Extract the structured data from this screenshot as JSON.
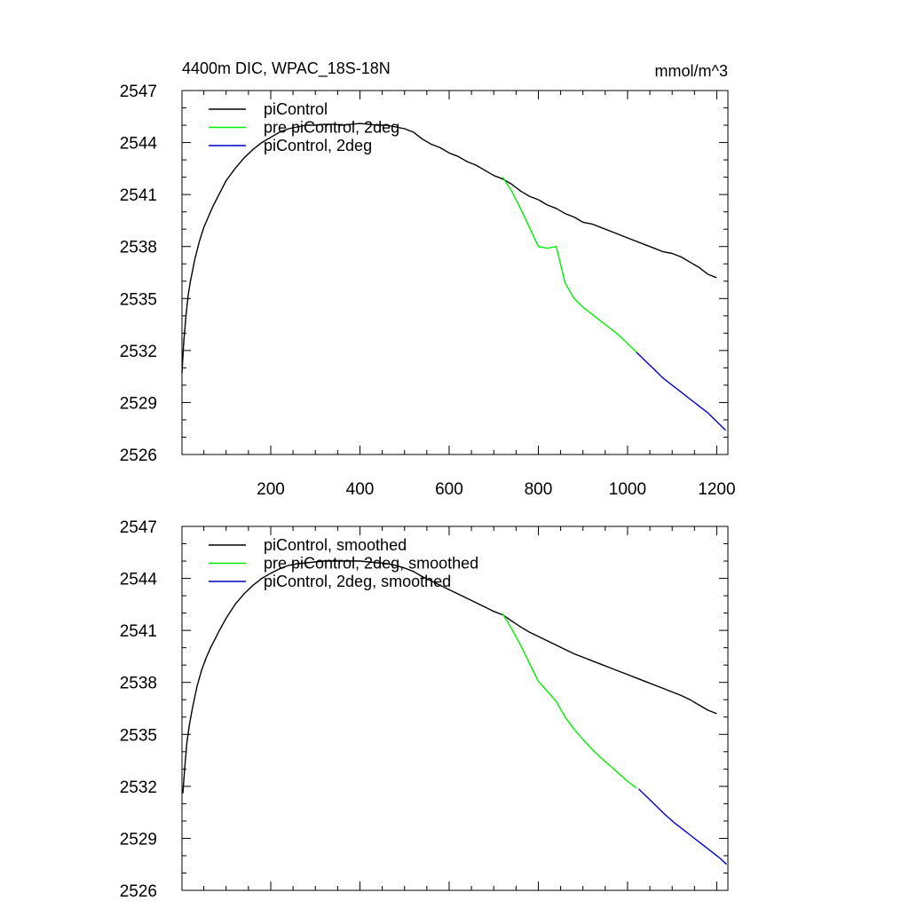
{
  "chart_data": [
    {
      "type": "line",
      "title_left": "4400m DIC, WPAC_18S-18N",
      "title_right": "mmol/m^3",
      "xlim": [
        1,
        1225
      ],
      "ylim": [
        2526,
        2547
      ],
      "yticks": [
        2526,
        2529,
        2532,
        2535,
        2538,
        2541,
        2544,
        2547
      ],
      "xticks": [
        200,
        400,
        600,
        800,
        1000,
        1200
      ],
      "show_x_tick_labels": true,
      "legend_position": "top-left",
      "series": [
        {
          "name": "piControl",
          "color": "#000000",
          "x": [
            1,
            5,
            10,
            15,
            20,
            30,
            40,
            50,
            60,
            70,
            80,
            90,
            100,
            120,
            140,
            160,
            180,
            200,
            220,
            240,
            260,
            280,
            300,
            320,
            340,
            360,
            380,
            400,
            420,
            440,
            460,
            480,
            500,
            520,
            540,
            560,
            580,
            600,
            620,
            640,
            660,
            680,
            700,
            720,
            740,
            760,
            780,
            800,
            820,
            840,
            860,
            880,
            900,
            920,
            940,
            960,
            980,
            1000,
            1020,
            1040,
            1060,
            1080,
            1100,
            1120,
            1140,
            1160,
            1180,
            1200
          ],
          "y": [
            2530.7,
            2532.5,
            2534.0,
            2535.2,
            2536.0,
            2537.3,
            2538.3,
            2539.1,
            2539.7,
            2540.3,
            2540.8,
            2541.3,
            2541.8,
            2542.5,
            2543.1,
            2543.6,
            2544.0,
            2544.3,
            2544.6,
            2544.8,
            2544.9,
            2545.0,
            2545.0,
            2545.05,
            2545.05,
            2545.0,
            2545.05,
            2545.1,
            2545.05,
            2545.0,
            2545.0,
            2544.9,
            2544.8,
            2544.6,
            2544.2,
            2543.9,
            2543.7,
            2543.4,
            2543.2,
            2542.9,
            2542.7,
            2542.4,
            2542.1,
            2541.9,
            2541.6,
            2541.2,
            2540.9,
            2540.7,
            2540.4,
            2540.2,
            2539.9,
            2539.7,
            2539.4,
            2539.3,
            2539.1,
            2538.9,
            2538.7,
            2538.5,
            2538.3,
            2538.1,
            2537.9,
            2537.7,
            2537.6,
            2537.4,
            2537.1,
            2536.8,
            2536.4,
            2536.2
          ]
        },
        {
          "name": "pre piControl, 2deg",
          "color": "#00ee00",
          "x": [
            720,
            740,
            760,
            780,
            800,
            820,
            840,
            860,
            880,
            900,
            920,
            940,
            960,
            980,
            1000,
            1020
          ],
          "y": [
            2542.0,
            2541.2,
            2540.2,
            2539.1,
            2538.0,
            2537.9,
            2538.0,
            2535.9,
            2535.0,
            2534.5,
            2534.1,
            2533.7,
            2533.3,
            2532.9,
            2532.4,
            2531.9
          ]
        },
        {
          "name": "piControl, 2deg",
          "color": "#0000cc",
          "x": [
            1020,
            1040,
            1060,
            1080,
            1100,
            1120,
            1140,
            1160,
            1180,
            1200,
            1220
          ],
          "y": [
            2531.9,
            2531.4,
            2530.9,
            2530.4,
            2530.0,
            2529.6,
            2529.2,
            2528.8,
            2528.4,
            2527.9,
            2527.4
          ]
        }
      ]
    },
    {
      "type": "line",
      "xlim": [
        1,
        1225
      ],
      "ylim": [
        2526,
        2547
      ],
      "yticks": [
        2526,
        2529,
        2532,
        2535,
        2538,
        2541,
        2544,
        2547
      ],
      "xticks": [
        200,
        400,
        600,
        800,
        1000,
        1200
      ],
      "show_x_tick_labels": false,
      "legend_position": "top-left",
      "series": [
        {
          "name": "piControl, smoothed",
          "color": "#000000",
          "x": [
            3,
            7,
            12,
            18,
            25,
            35,
            45,
            55,
            65,
            75,
            85,
            100,
            120,
            140,
            160,
            180,
            200,
            220,
            240,
            260,
            280,
            300,
            320,
            340,
            360,
            380,
            400,
            420,
            440,
            460,
            480,
            500,
            520,
            540,
            560,
            580,
            600,
            620,
            640,
            660,
            680,
            700,
            720,
            740,
            760,
            780,
            800,
            820,
            840,
            860,
            880,
            900,
            920,
            940,
            960,
            980,
            1000,
            1020,
            1040,
            1060,
            1080,
            1100,
            1120,
            1140,
            1160,
            1180,
            1200
          ],
          "y": [
            2531.6,
            2533.0,
            2534.5,
            2535.6,
            2536.6,
            2537.8,
            2538.7,
            2539.4,
            2540.0,
            2540.5,
            2541.0,
            2541.7,
            2542.5,
            2543.1,
            2543.6,
            2544.0,
            2544.3,
            2544.55,
            2544.75,
            2544.85,
            2544.9,
            2544.95,
            2545.0,
            2545.0,
            2545.0,
            2545.0,
            2545.0,
            2544.95,
            2544.9,
            2544.85,
            2544.75,
            2544.6,
            2544.4,
            2544.1,
            2543.85,
            2543.6,
            2543.35,
            2543.1,
            2542.85,
            2542.6,
            2542.35,
            2542.1,
            2541.9,
            2541.55,
            2541.2,
            2540.9,
            2540.65,
            2540.4,
            2540.15,
            2539.9,
            2539.65,
            2539.45,
            2539.25,
            2539.05,
            2538.85,
            2538.65,
            2538.45,
            2538.25,
            2538.05,
            2537.85,
            2537.65,
            2537.45,
            2537.25,
            2537.0,
            2536.7,
            2536.4,
            2536.2
          ]
        },
        {
          "name": "pre piControl, 2deg, smoothed",
          "color": "#00ee00",
          "x": [
            720,
            740,
            760,
            780,
            800,
            820,
            840,
            860,
            880,
            900,
            920,
            940,
            960,
            980,
            1000,
            1020
          ],
          "y": [
            2541.95,
            2541.1,
            2540.15,
            2539.1,
            2538.05,
            2537.5,
            2536.9,
            2536.0,
            2535.3,
            2534.7,
            2534.15,
            2533.65,
            2533.2,
            2532.75,
            2532.3,
            2531.9
          ]
        },
        {
          "name": "piControl, 2deg, smoothed",
          "color": "#0000cc",
          "x": [
            1025,
            1045,
            1065,
            1085,
            1105,
            1125,
            1145,
            1165,
            1185,
            1205,
            1222
          ],
          "y": [
            2531.85,
            2531.35,
            2530.85,
            2530.35,
            2529.9,
            2529.5,
            2529.1,
            2528.7,
            2528.3,
            2527.9,
            2527.5
          ]
        }
      ]
    }
  ]
}
